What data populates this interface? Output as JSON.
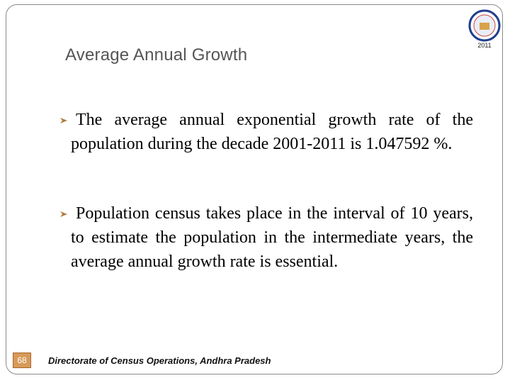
{
  "header": {
    "title": "Average Annual Growth"
  },
  "logo": {
    "year": "2011"
  },
  "bullets": [
    "The average annual exponential growth rate of the population during the decade 2001-2011 is 1.047592 %.",
    "Population census takes place in the interval of 10 years, to estimate the  population in the intermediate years, the average annual growth rate is essential."
  ],
  "footer": {
    "page_number": "68",
    "text": "Directorate of Census Operations, Andhra Pradesh"
  }
}
